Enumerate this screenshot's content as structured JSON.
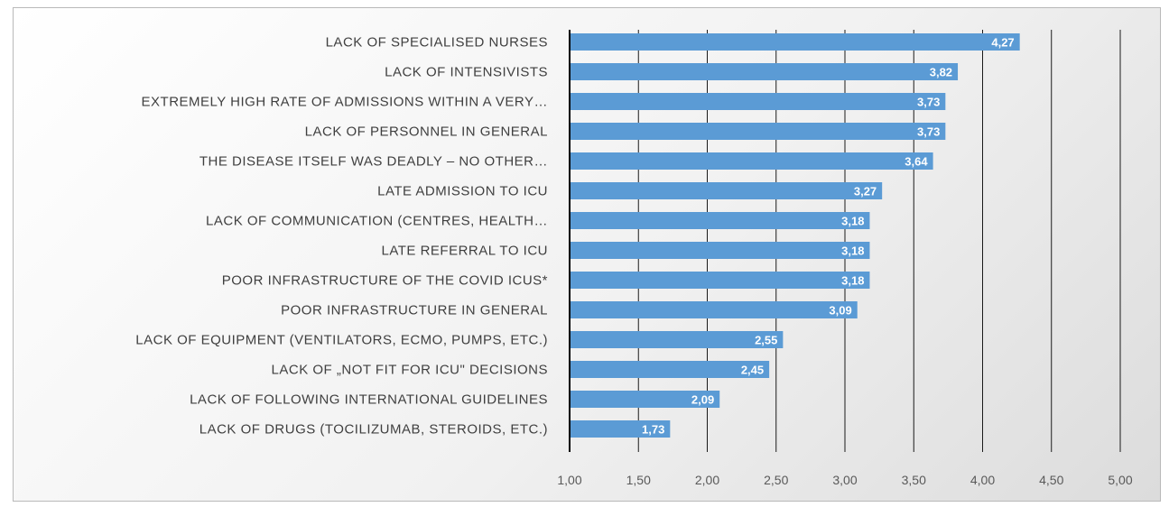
{
  "chart_data": {
    "type": "bar",
    "orientation": "horizontal",
    "categories": [
      "LACK OF SPECIALISED NURSES",
      "LACK OF INTENSIVISTS",
      "EXTREMELY HIGH RATE OF ADMISSIONS WITHIN A VERY…",
      "LACK OF PERSONNEL IN GENERAL",
      "THE DISEASE ITSELF WAS DEADLY – NO OTHER…",
      "LATE ADMISSION TO ICU",
      "LACK OF COMMUNICATION (CENTRES, HEALTH…",
      "LATE REFERRAL TO ICU",
      "POOR INFRASTRUCTURE OF THE COVID ICUS*",
      "POOR INFRASTRUCTURE IN GENERAL",
      "LACK OF EQUIPMENT (VENTILATORS, ECMO, PUMPS, ETC.)",
      "LACK OF „NOT FIT FOR ICU\" DECISIONS",
      "LACK OF FOLLOWING INTERNATIONAL GUIDELINES",
      "LACK OF DRUGS (TOCILIZUMAB, STEROIDS, ETC.)"
    ],
    "values": [
      4.27,
      3.82,
      3.73,
      3.73,
      3.64,
      3.27,
      3.18,
      3.18,
      3.18,
      3.09,
      2.55,
      2.45,
      2.09,
      1.73
    ],
    "value_labels": [
      "4,27",
      "3,82",
      "3,73",
      "3,73",
      "3,64",
      "3,27",
      "3,18",
      "3,18",
      "3,18",
      "3,09",
      "2,55",
      "2,45",
      "2,09",
      "1,73"
    ],
    "xlim": [
      1,
      5
    ],
    "xticks": [
      "1,00",
      "1,50",
      "2,00",
      "2,50",
      "3,00",
      "3,50",
      "4,00",
      "4,50",
      "5,00"
    ],
    "xtick_values": [
      1,
      1.5,
      2,
      2.5,
      3,
      3.5,
      4,
      4.5,
      5
    ],
    "grid": "vertical",
    "bar_color": "#5b9bd5",
    "grid_color": "#1a1a1a"
  }
}
